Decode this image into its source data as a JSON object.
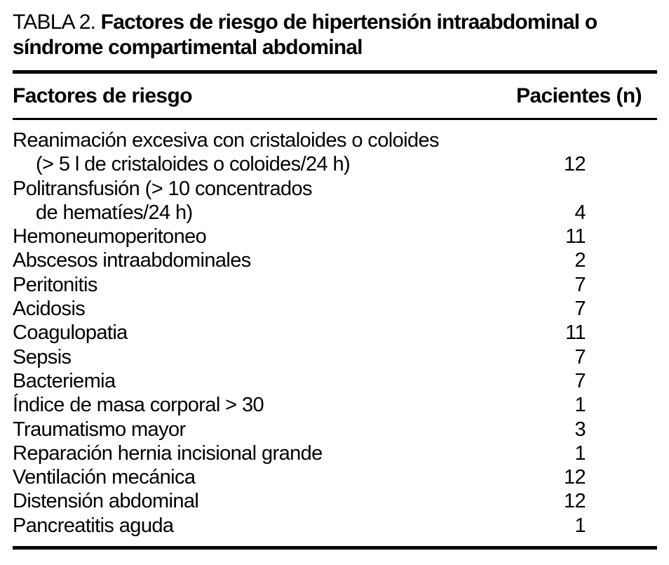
{
  "table": {
    "label": "TABLA 2.",
    "title": "Factores de riesgo de hipertensión intraabdominal o síndrome compartimental abdominal",
    "columns": [
      "Factores de riesgo",
      "Pacientes (n)"
    ],
    "rows": [
      {
        "lines": [
          "Reanimación excesiva con cristaloides o coloides",
          "(> 5 l de cristaloides o coloides/24 h)"
        ],
        "value": "12"
      },
      {
        "lines": [
          "Politransfusión (> 10 concentrados",
          "de hematíes/24 h)"
        ],
        "value": "4"
      },
      {
        "lines": [
          "Hemoneumoperitoneo"
        ],
        "value": "11"
      },
      {
        "lines": [
          "Abscesos intraabdominales"
        ],
        "value": "2"
      },
      {
        "lines": [
          "Peritonitis"
        ],
        "value": "7"
      },
      {
        "lines": [
          "Acidosis"
        ],
        "value": "7"
      },
      {
        "lines": [
          "Coagulopatia"
        ],
        "value": "11"
      },
      {
        "lines": [
          "Sepsis"
        ],
        "value": "7"
      },
      {
        "lines": [
          "Bacteriemia"
        ],
        "value": "7"
      },
      {
        "lines": [
          "Índice de masa corporal > 30"
        ],
        "value": "1"
      },
      {
        "lines": [
          "Traumatismo mayor"
        ],
        "value": "3"
      },
      {
        "lines": [
          "Reparación hernia incisional grande"
        ],
        "value": "1"
      },
      {
        "lines": [
          "Ventilación mecánica"
        ],
        "value": "12"
      },
      {
        "lines": [
          "Distensión abdominal"
        ],
        "value": "12"
      },
      {
        "lines": [
          "Pancreatitis aguda"
        ],
        "value": "1"
      }
    ],
    "colors": {
      "text": "#000000",
      "background": "#ffffff",
      "rule": "#000000"
    }
  }
}
